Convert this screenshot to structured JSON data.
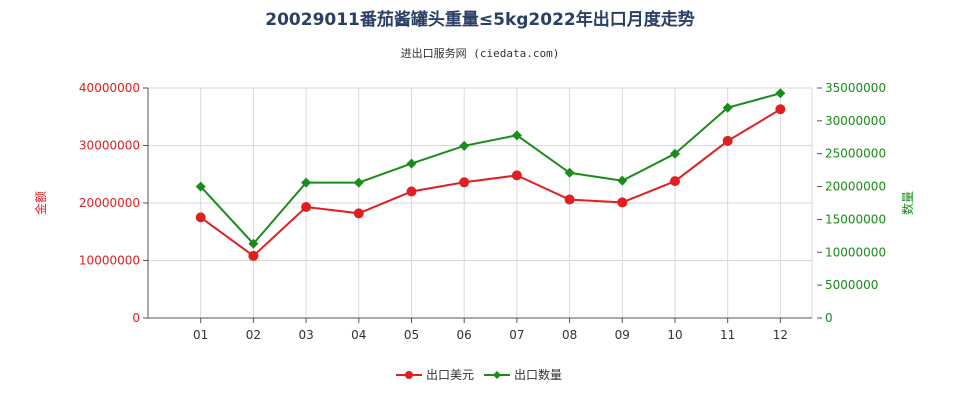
{
  "chart_data": {
    "type": "line",
    "title": "20029011番茄酱罐头重量≤5kg2022年出口月度走势",
    "subtitle": "进出口服务网 (ciedata.com)",
    "categories": [
      "01",
      "02",
      "03",
      "04",
      "05",
      "06",
      "07",
      "08",
      "09",
      "10",
      "11",
      "12"
    ],
    "left_axis": {
      "label": "金额",
      "min": 0,
      "max": 40000000,
      "ticks": [
        "0",
        "10000000",
        "20000000",
        "30000000",
        "40000000"
      ],
      "tick_values": [
        0,
        10000000,
        20000000,
        30000000,
        40000000
      ],
      "color": "#e02020"
    },
    "right_axis": {
      "label": "数量",
      "min": 0,
      "max": 35000000,
      "ticks": [
        "0",
        "5000000",
        "10000000",
        "15000000",
        "20000000",
        "25000000",
        "30000000",
        "35000000"
      ],
      "tick_values": [
        0,
        5000000,
        10000000,
        15000000,
        20000000,
        25000000,
        30000000,
        35000000
      ],
      "color": "#1a8c1a"
    },
    "series": [
      {
        "name": "出口美元",
        "axis": "left",
        "color": "#e02020",
        "marker": "circle",
        "values": [
          17500000,
          10800000,
          19300000,
          18200000,
          22000000,
          23600000,
          24800000,
          20600000,
          20100000,
          23800000,
          30800000,
          36300000
        ]
      },
      {
        "name": "出口数量",
        "axis": "right",
        "color": "#1a8c1a",
        "marker": "diamond",
        "values": [
          20000000,
          11300000,
          20600000,
          20600000,
          23500000,
          26200000,
          27800000,
          22100000,
          20900000,
          25000000,
          32000000,
          34200000
        ]
      }
    ],
    "grid": true,
    "legend_position": "bottom"
  }
}
